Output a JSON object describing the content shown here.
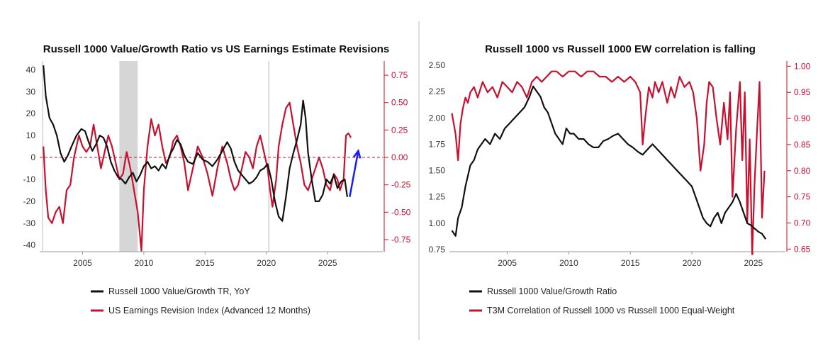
{
  "colors": {
    "black": "#111111",
    "red": "#c8102e",
    "recession": "#d6d6d6",
    "arrow": "#1a1aff",
    "divider": "#bbbbbb"
  },
  "chart_data": [
    {
      "type": "line",
      "title": "Russell 1000 Value/Growth Ratio vs US Earnings Estimate Revisions",
      "xlim": [
        2001.5,
        2029.5
      ],
      "x_ticks": [
        "2005",
        "2010",
        "2015",
        "2020",
        "2025"
      ],
      "y_left": {
        "lim": [
          -43,
          44
        ],
        "ticks": [
          "40",
          "30",
          "20",
          "10",
          "0",
          "-10",
          "-20",
          "-30",
          "-40"
        ]
      },
      "y_right": {
        "lim": [
          -0.86,
          0.88
        ],
        "ticks": [
          "0.75",
          "0.50",
          "0.25",
          "0.00",
          "-0.25",
          "-0.50",
          "-0.75"
        ]
      },
      "shaded_ranges": [
        [
          2008.0,
          2009.5
        ]
      ],
      "vertical_lines": [
        2001.75,
        2020.2
      ],
      "zero_line": true,
      "series": [
        {
          "name": "Russell 1000 Value/Growth TR, YoY",
          "axis": "left",
          "color": "black",
          "x": [
            2001.8,
            2002.0,
            2002.3,
            2002.6,
            2002.9,
            2003.2,
            2003.5,
            2003.8,
            2004.1,
            2004.5,
            2004.9,
            2005.2,
            2005.5,
            2005.8,
            2006.1,
            2006.4,
            2006.7,
            2007.0,
            2007.3,
            2007.6,
            2007.9,
            2008.2,
            2008.5,
            2008.8,
            2009.1,
            2009.4,
            2009.7,
            2010.0,
            2010.3,
            2010.6,
            2010.9,
            2011.2,
            2011.5,
            2011.8,
            2012.1,
            2012.4,
            2012.7,
            2013.0,
            2013.3,
            2013.6,
            2014.0,
            2014.4,
            2014.8,
            2015.2,
            2015.6,
            2016.0,
            2016.4,
            2016.8,
            2017.1,
            2017.4,
            2017.7,
            2018.0,
            2018.3,
            2018.6,
            2018.9,
            2019.2,
            2019.5,
            2019.8,
            2020.1,
            2020.4,
            2020.7,
            2021.0,
            2021.3,
            2021.6,
            2021.9,
            2022.2,
            2022.5,
            2022.8,
            2023.0,
            2023.2,
            2023.4,
            2023.7,
            2024.0,
            2024.3,
            2024.6,
            2024.9,
            2025.2,
            2025.5,
            2025.8,
            2026.1,
            2026.4,
            2026.6
          ],
          "values": [
            42,
            28,
            18,
            15,
            10,
            2,
            -2,
            1,
            5,
            10,
            13,
            12,
            7,
            3,
            6,
            10,
            9,
            5,
            -2,
            -6,
            -9,
            -10,
            -12,
            -9,
            -7,
            -11,
            -8,
            -4,
            -2,
            -5,
            -4,
            -6,
            -3,
            -5,
            1,
            4,
            8,
            6,
            1,
            -2,
            -3,
            2,
            -1,
            -2,
            -4,
            -1,
            3,
            7,
            4,
            -2,
            -6,
            -8,
            -10,
            -12,
            -11,
            -9,
            -6,
            -5,
            -3,
            -10,
            -20,
            -27,
            -29,
            -18,
            -5,
            2,
            8,
            15,
            26,
            18,
            2,
            -10,
            -20,
            -20,
            -17,
            -10,
            -12,
            -8,
            -14,
            -11,
            -10,
            -18
          ]
        },
        {
          "name": "US Earnings Revision Index (Advanced 12 Months)",
          "axis": "right",
          "color": "red",
          "x": [
            2001.8,
            2002.0,
            2002.2,
            2002.5,
            2002.8,
            2003.1,
            2003.4,
            2003.7,
            2004.0,
            2004.3,
            2004.7,
            2005.0,
            2005.3,
            2005.6,
            2005.9,
            2006.2,
            2006.5,
            2006.8,
            2007.1,
            2007.4,
            2007.7,
            2008.0,
            2008.3,
            2008.6,
            2008.9,
            2009.2,
            2009.5,
            2009.8,
            2010.0,
            2010.3,
            2010.6,
            2010.9,
            2011.2,
            2011.5,
            2011.8,
            2012.1,
            2012.4,
            2012.7,
            2013.0,
            2013.3,
            2013.6,
            2014.0,
            2014.4,
            2014.8,
            2015.2,
            2015.6,
            2016.0,
            2016.4,
            2016.8,
            2017.1,
            2017.4,
            2017.7,
            2018.0,
            2018.3,
            2018.6,
            2018.9,
            2019.2,
            2019.5,
            2019.8,
            2020.1,
            2020.3,
            2020.5,
            2020.8,
            2021.0,
            2021.3,
            2021.6,
            2021.9,
            2022.2,
            2022.5,
            2022.8,
            2023.1,
            2023.4,
            2023.7,
            2024.0,
            2024.3,
            2024.6,
            2024.9,
            2025.2,
            2025.5,
            2025.8,
            2026.0,
            2026.3,
            2026.5,
            2026.7,
            2026.9
          ],
          "values": [
            0.1,
            -0.3,
            -0.55,
            -0.6,
            -0.5,
            -0.45,
            -0.6,
            -0.3,
            -0.25,
            0.0,
            0.2,
            0.1,
            0.05,
            0.1,
            0.3,
            0.1,
            -0.1,
            0.05,
            0.2,
            0.1,
            -0.05,
            -0.2,
            -0.15,
            0.05,
            -0.1,
            -0.3,
            -0.5,
            -0.85,
            -0.3,
            0.1,
            0.35,
            0.2,
            0.3,
            0.1,
            -0.05,
            0.0,
            0.15,
            0.2,
            0.1,
            -0.05,
            -0.3,
            -0.1,
            0.1,
            0.0,
            -0.15,
            -0.35,
            -0.1,
            0.1,
            -0.05,
            -0.2,
            -0.3,
            -0.25,
            -0.1,
            0.05,
            0.0,
            -0.1,
            0.1,
            0.2,
            0.05,
            -0.1,
            -0.3,
            -0.45,
            -0.2,
            0.1,
            0.3,
            0.45,
            0.5,
            0.3,
            0.1,
            -0.05,
            -0.25,
            -0.3,
            -0.2,
            -0.1,
            0.0,
            -0.1,
            -0.25,
            -0.3,
            -0.15,
            -0.2,
            -0.3,
            -0.2,
            0.2,
            0.22,
            0.18
          ]
        }
      ],
      "annotation": {
        "type": "arrow",
        "from": [
          2026.8,
          -18
        ],
        "to": [
          2027.5,
          3
        ]
      }
    },
    {
      "type": "line",
      "title": "Russell 1000 vs Russell 1000 EW correlation is falling",
      "xlim": [
        2000.3,
        2027.6
      ],
      "x_ticks": [
        "2005",
        "2010",
        "2015",
        "2020",
        "2025"
      ],
      "y_left": {
        "lim": [
          0.73,
          2.54
        ],
        "ticks": [
          "2.50",
          "2.25",
          "2.00",
          "1.75",
          "1.50",
          "1.25",
          "1.00",
          "0.75"
        ]
      },
      "y_right": {
        "lim": [
          0.645,
          1.01
        ],
        "ticks": [
          "1.00",
          "0.95",
          "0.90",
          "0.85",
          "0.80",
          "0.75",
          "0.70",
          "0.65"
        ]
      },
      "series": [
        {
          "name": "Russell 1000 Value/Growth Ratio",
          "axis": "left",
          "color": "black",
          "x": [
            2000.5,
            2000.8,
            2001.0,
            2001.3,
            2001.6,
            2002.0,
            2002.3,
            2002.6,
            2002.9,
            2003.2,
            2003.6,
            2004.0,
            2004.4,
            2004.8,
            2005.2,
            2005.6,
            2006.0,
            2006.4,
            2006.8,
            2007.1,
            2007.4,
            2007.7,
            2008.0,
            2008.3,
            2008.6,
            2008.9,
            2009.2,
            2009.5,
            2009.8,
            2010.1,
            2010.4,
            2010.8,
            2011.2,
            2011.6,
            2012.0,
            2012.4,
            2012.8,
            2013.2,
            2013.6,
            2014.0,
            2014.4,
            2014.8,
            2015.2,
            2015.6,
            2016.0,
            2016.4,
            2016.8,
            2017.2,
            2017.6,
            2018.0,
            2018.4,
            2018.8,
            2019.2,
            2019.6,
            2020.0,
            2020.3,
            2020.6,
            2020.9,
            2021.2,
            2021.5,
            2021.8,
            2022.1,
            2022.4,
            2022.7,
            2023.0,
            2023.3,
            2023.6,
            2023.9,
            2024.2,
            2024.5,
            2024.8,
            2025.1,
            2025.4,
            2025.7,
            2026.0
          ],
          "values": [
            0.93,
            0.88,
            1.05,
            1.15,
            1.35,
            1.55,
            1.6,
            1.7,
            1.75,
            1.8,
            1.75,
            1.85,
            1.8,
            1.9,
            1.95,
            2.0,
            2.05,
            2.1,
            2.2,
            2.3,
            2.25,
            2.2,
            2.1,
            2.05,
            1.95,
            1.85,
            1.8,
            1.75,
            1.9,
            1.85,
            1.85,
            1.8,
            1.8,
            1.75,
            1.72,
            1.72,
            1.78,
            1.8,
            1.83,
            1.85,
            1.8,
            1.75,
            1.72,
            1.68,
            1.65,
            1.7,
            1.75,
            1.7,
            1.65,
            1.6,
            1.55,
            1.5,
            1.45,
            1.4,
            1.35,
            1.25,
            1.15,
            1.05,
            1.0,
            0.97,
            1.05,
            1.1,
            1.0,
            1.1,
            1.15,
            1.2,
            1.28,
            1.2,
            1.1,
            1.0,
            0.98,
            0.95,
            0.92,
            0.9,
            0.85
          ]
        },
        {
          "name": "T3M Correlation of Russell 1000 vs Russell 1000 Equal-Weight",
          "axis": "right",
          "color": "red",
          "x": [
            2000.5,
            2000.8,
            2001.0,
            2001.2,
            2001.4,
            2001.6,
            2001.8,
            2002.0,
            2002.3,
            2002.6,
            2003.0,
            2003.4,
            2003.8,
            2004.2,
            2004.6,
            2005.0,
            2005.4,
            2005.8,
            2006.2,
            2006.6,
            2007.0,
            2007.4,
            2007.8,
            2008.2,
            2008.6,
            2009.0,
            2009.5,
            2010.0,
            2010.5,
            2011.0,
            2011.5,
            2012.0,
            2012.5,
            2013.0,
            2013.5,
            2014.0,
            2014.5,
            2015.0,
            2015.4,
            2015.8,
            2016.0,
            2016.2,
            2016.5,
            2016.8,
            2017.0,
            2017.3,
            2017.6,
            2018.0,
            2018.3,
            2018.6,
            2019.0,
            2019.4,
            2019.8,
            2020.1,
            2020.4,
            2020.7,
            2021.0,
            2021.2,
            2021.4,
            2021.7,
            2022.0,
            2022.3,
            2022.6,
            2022.9,
            2023.1,
            2023.3,
            2023.6,
            2023.9,
            2024.1,
            2024.3,
            2024.5,
            2024.7,
            2024.9,
            2025.1,
            2025.3,
            2025.5,
            2025.7,
            2025.9
          ],
          "values": [
            0.91,
            0.87,
            0.82,
            0.89,
            0.92,
            0.94,
            0.93,
            0.95,
            0.96,
            0.94,
            0.97,
            0.95,
            0.96,
            0.94,
            0.97,
            0.96,
            0.95,
            0.97,
            0.96,
            0.94,
            0.97,
            0.98,
            0.97,
            0.98,
            0.99,
            0.99,
            0.98,
            0.99,
            0.99,
            0.98,
            0.99,
            0.99,
            0.98,
            0.98,
            0.97,
            0.98,
            0.97,
            0.98,
            0.97,
            0.95,
            0.85,
            0.9,
            0.96,
            0.94,
            0.97,
            0.95,
            0.97,
            0.93,
            0.96,
            0.94,
            0.98,
            0.96,
            0.97,
            0.95,
            0.9,
            0.8,
            0.85,
            0.93,
            0.97,
            0.96,
            0.9,
            0.85,
            0.93,
            0.86,
            0.95,
            0.75,
            0.88,
            0.97,
            0.82,
            0.95,
            0.7,
            0.86,
            0.64,
            0.78,
            0.88,
            0.97,
            0.71,
            0.8
          ]
        }
      ]
    }
  ],
  "legend": {
    "left": [
      "Russell 1000 Value/Growth TR, YoY",
      "US Earnings Revision Index (Advanced 12 Months)"
    ],
    "right": [
      "Russell 1000 Value/Growth Ratio",
      "T3M Correlation of Russell 1000 vs Russell 1000 Equal-Weight"
    ]
  }
}
